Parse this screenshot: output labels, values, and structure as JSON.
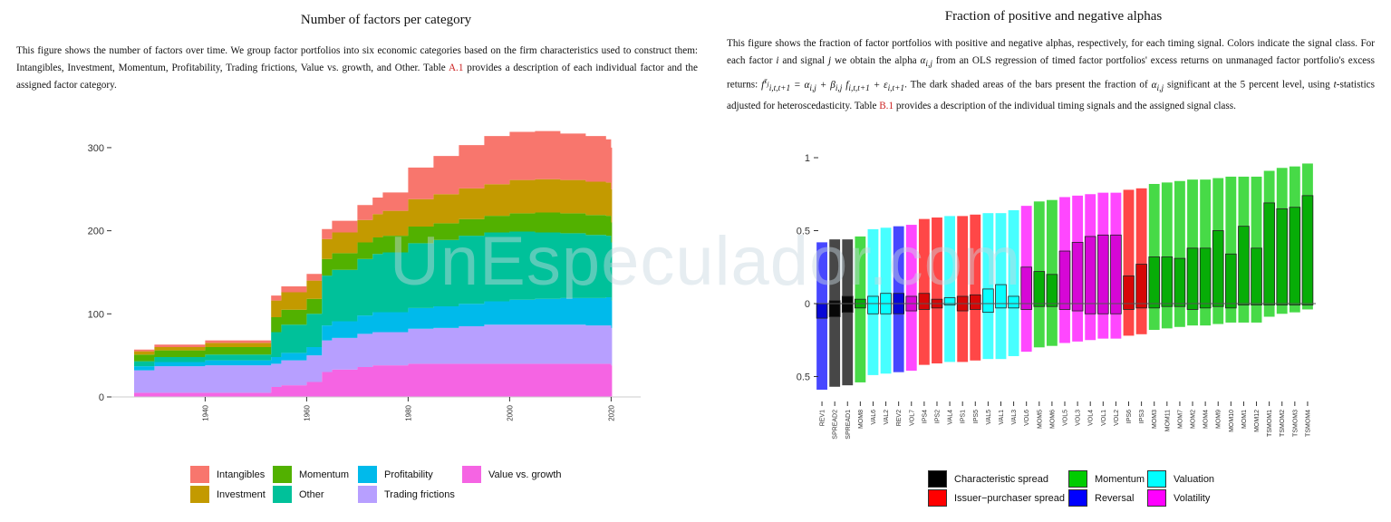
{
  "left": {
    "title": "Number of factors per category",
    "caption_parts": [
      "This figure shows the number of factors over time. We group factor portfolios into six economic categories based on the firm characteristics used to construct them: Intangibles, Investment, Momentum, Profitability, Trading frictions, Value vs. growth, and Other. Table ",
      "A.1",
      " provides a description of each individual factor and the assigned factor category."
    ]
  },
  "right": {
    "title": "Fraction of positive and negative alphas",
    "caption_parts": [
      "This figure shows the fraction of factor portfolios with positive and negative alphas, respectively, for each timing signal. Colors indicate the signal class. For each factor ",
      "i",
      " and signal ",
      "j",
      " we obtain the alpha ",
      "α",
      " from an OLS regression of timed factor portfolios' excess returns on unmanaged factor portfolio's excess returns: ",
      "f",
      " = α",
      " + β",
      " f",
      " + ε",
      ". The dark shaded areas of the bars present the fraction of ",
      "α",
      " significant at the 5 percent level, using ",
      "t",
      "-statistics adjusted for heteroscedasticity. Table ",
      "B.1",
      " provides a description of the individual timing signals and the assigned signal class."
    ]
  },
  "watermark": "UnEspeculador.com",
  "chart_data": [
    {
      "type": "area",
      "stacked": true,
      "title": "Number of factors per category",
      "xlabel": "",
      "ylabel": "",
      "xlim": [
        1926,
        2021
      ],
      "ylim": [
        0,
        325
      ],
      "x_ticks": [
        1940,
        1960,
        1980,
        2000,
        2020
      ],
      "y_ticks": [
        0,
        100,
        200,
        300
      ],
      "grid": false,
      "legend_position": "bottom",
      "x": [
        1926,
        1930,
        1940,
        1950,
        1952,
        1953,
        1955,
        1960,
        1963,
        1965,
        1970,
        1973,
        1975,
        1980,
        1985,
        1990,
        1995,
        2000,
        2005,
        2010,
        2015,
        2019,
        2020
      ],
      "series": [
        {
          "name": "Value vs. growth",
          "color": "#F564E3",
          "values": [
            5,
            5,
            5,
            5,
            5,
            12,
            14,
            18,
            30,
            33,
            36,
            38,
            38,
            40,
            40,
            40,
            40,
            40,
            40,
            40,
            40,
            40,
            38
          ]
        },
        {
          "name": "Trading frictions",
          "color": "#B79FFF",
          "values": [
            27,
            32,
            33,
            33,
            33,
            28,
            30,
            32,
            38,
            38,
            40,
            40,
            40,
            42,
            43,
            45,
            47,
            47,
            47,
            47,
            46,
            46,
            45
          ]
        },
        {
          "name": "Profitability",
          "color": "#00BAEB",
          "values": [
            5,
            5,
            6,
            6,
            6,
            8,
            9,
            10,
            18,
            20,
            22,
            24,
            24,
            25,
            26,
            27,
            28,
            30,
            31,
            32,
            33,
            34,
            33
          ]
        },
        {
          "name": "Other",
          "color": "#00C19A",
          "values": [
            6,
            6,
            7,
            7,
            7,
            30,
            34,
            40,
            60,
            62,
            68,
            70,
            72,
            78,
            80,
            82,
            83,
            82,
            80,
            78,
            76,
            74,
            70
          ]
        },
        {
          "name": "Momentum",
          "color": "#52B100",
          "values": [
            8,
            8,
            9,
            9,
            9,
            18,
            18,
            18,
            20,
            20,
            20,
            20,
            20,
            20,
            20,
            20,
            20,
            22,
            24,
            24,
            24,
            24,
            24
          ]
        },
        {
          "name": "Investment",
          "color": "#C39A00",
          "values": [
            4,
            4,
            5,
            5,
            5,
            20,
            21,
            22,
            24,
            25,
            27,
            28,
            30,
            33,
            35,
            37,
            38,
            40,
            40,
            40,
            40,
            40,
            40
          ]
        },
        {
          "name": "Intangibles",
          "color": "#F8766D",
          "values": [
            2,
            3,
            3,
            3,
            3,
            6,
            7,
            8,
            12,
            14,
            18,
            20,
            22,
            38,
            46,
            52,
            58,
            58,
            58,
            56,
            55,
            52,
            50
          ]
        }
      ]
    },
    {
      "type": "bar",
      "title": "Fraction of positive and negative alphas",
      "xlabel": "",
      "ylabel": "",
      "ylim": [
        -0.6,
        1.0
      ],
      "y_ticks": [
        1,
        0.5,
        0,
        -0.5
      ],
      "y_tick_labels": [
        "1",
        "0.5",
        "0",
        "0.5"
      ],
      "grid": false,
      "legend_position": "bottom",
      "class_colors": {
        "Characteristic spread": "#000000",
        "Issuer-purchaser spread": "#FF0000",
        "Momentum": "#00CC00",
        "Reversal": "#0000FF",
        "Valuation": "#00FFFF",
        "Volatility": "#FF00FF"
      },
      "categories": [
        "REV1",
        "SPREAD2",
        "SPREAD1",
        "MOM8",
        "VAL6",
        "VAL2",
        "REV2",
        "VOL7",
        "IPS4",
        "IPS2",
        "VAL4",
        "IPS1",
        "IPS5",
        "VAL5",
        "VAL1",
        "VAL3",
        "VOL6",
        "MOM5",
        "MOM6",
        "VOL5",
        "VOL3",
        "VOL4",
        "VOL1",
        "VOL2",
        "IPS6",
        "IPS3",
        "MOM3",
        "MOM11",
        "MOM7",
        "MOM2",
        "MOM4",
        "MOM9",
        "MOM10",
        "MOM1",
        "MOM12",
        "TSMOM1",
        "TSMOM2",
        "TSMOM3",
        "TSMOM4"
      ],
      "classes": [
        "Reversal",
        "Characteristic spread",
        "Characteristic spread",
        "Momentum",
        "Valuation",
        "Valuation",
        "Reversal",
        "Volatility",
        "Issuer-purchaser spread",
        "Issuer-purchaser spread",
        "Valuation",
        "Issuer-purchaser spread",
        "Issuer-purchaser spread",
        "Valuation",
        "Valuation",
        "Valuation",
        "Volatility",
        "Momentum",
        "Momentum",
        "Volatility",
        "Volatility",
        "Volatility",
        "Volatility",
        "Volatility",
        "Issuer-purchaser spread",
        "Issuer-purchaser spread",
        "Momentum",
        "Momentum",
        "Momentum",
        "Momentum",
        "Momentum",
        "Momentum",
        "Momentum",
        "Momentum",
        "Momentum",
        "Momentum",
        "Momentum",
        "Momentum",
        "Momentum"
      ],
      "positive": [
        0.42,
        0.44,
        0.44,
        0.46,
        0.51,
        0.52,
        0.53,
        0.54,
        0.58,
        0.59,
        0.6,
        0.6,
        0.61,
        0.62,
        0.62,
        0.64,
        0.67,
        0.7,
        0.71,
        0.73,
        0.74,
        0.75,
        0.76,
        0.76,
        0.78,
        0.79,
        0.82,
        0.83,
        0.84,
        0.85,
        0.85,
        0.86,
        0.87,
        0.87,
        0.87,
        0.91,
        0.93,
        0.94,
        0.96
      ],
      "negative": [
        -0.59,
        -0.57,
        -0.56,
        -0.54,
        -0.49,
        -0.48,
        -0.47,
        -0.46,
        -0.42,
        -0.41,
        -0.4,
        -0.4,
        -0.39,
        -0.38,
        -0.38,
        -0.36,
        -0.33,
        -0.3,
        -0.29,
        -0.27,
        -0.26,
        -0.25,
        -0.24,
        -0.24,
        -0.22,
        -0.21,
        -0.18,
        -0.17,
        -0.16,
        -0.15,
        -0.15,
        -0.14,
        -0.13,
        -0.13,
        -0.13,
        -0.09,
        -0.07,
        -0.06,
        -0.04
      ],
      "positive_significant": [
        0.0,
        0.02,
        0.05,
        0.03,
        0.05,
        0.07,
        0.07,
        0.05,
        0.07,
        0.03,
        0.04,
        0.05,
        0.06,
        0.1,
        0.13,
        0.05,
        0.25,
        0.22,
        0.2,
        0.36,
        0.42,
        0.46,
        0.47,
        0.47,
        0.19,
        0.27,
        0.32,
        0.32,
        0.31,
        0.38,
        0.38,
        0.5,
        0.34,
        0.53,
        0.38,
        0.69,
        0.65,
        0.66,
        0.74
      ],
      "negative_significant": [
        -0.1,
        -0.09,
        -0.06,
        -0.03,
        -0.07,
        -0.07,
        -0.07,
        -0.05,
        -0.04,
        -0.03,
        -0.01,
        -0.05,
        -0.04,
        -0.06,
        -0.03,
        -0.03,
        -0.04,
        -0.02,
        -0.02,
        -0.04,
        -0.05,
        -0.07,
        -0.07,
        -0.07,
        -0.04,
        -0.03,
        -0.03,
        -0.02,
        -0.02,
        -0.04,
        -0.03,
        -0.02,
        -0.03,
        -0.01,
        -0.01,
        -0.01,
        -0.01,
        -0.01,
        -0.01
      ]
    }
  ]
}
